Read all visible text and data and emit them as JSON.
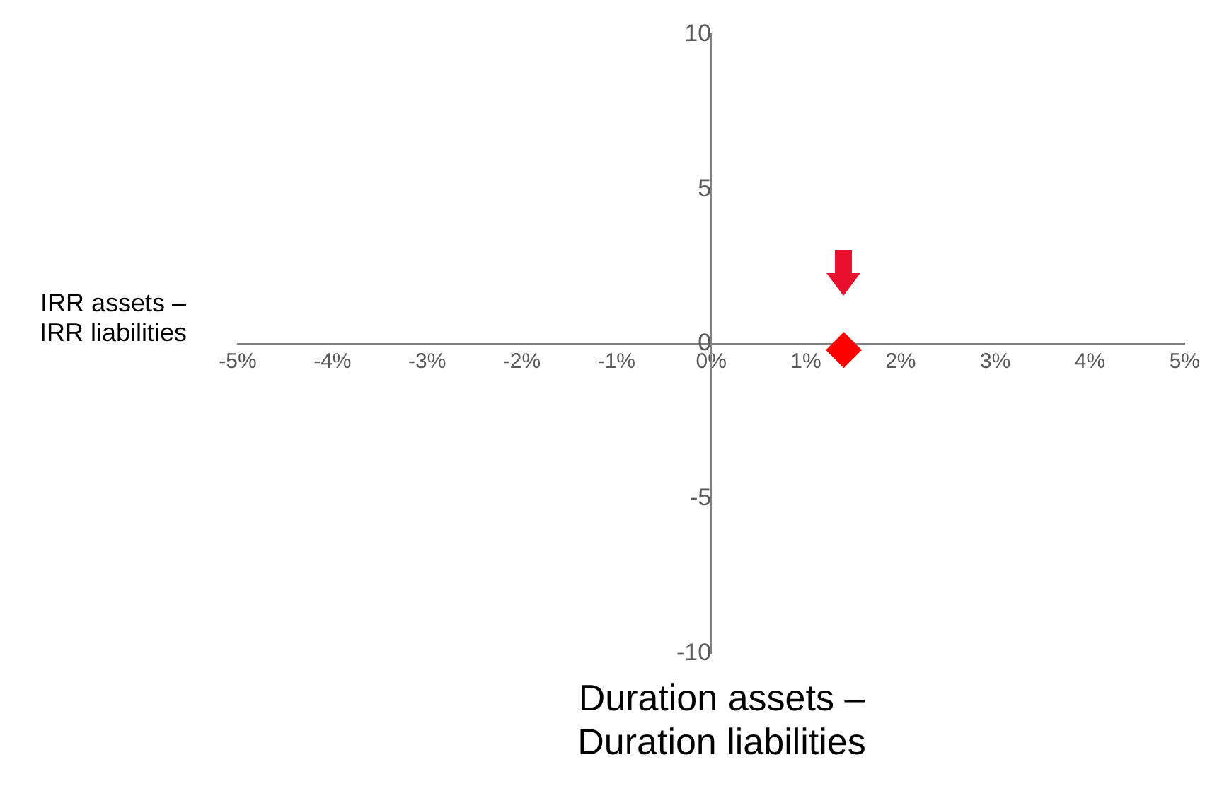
{
  "chart_data": {
    "type": "scatter",
    "xlabel": "Duration assets – Duration liabilities",
    "ylabel": "IRR assets – IRR liabilities",
    "series": [
      {
        "color": "#ff0000",
        "x": [
          1.4
        ],
        "values": [
          -0.2
        ]
      }
    ],
    "xlim": [
      -5,
      5
    ],
    "xticks": [
      {
        "value": -5,
        "label": "-5%"
      },
      {
        "value": -4,
        "label": "-4%"
      },
      {
        "value": -3,
        "label": "-3%"
      },
      {
        "value": -2,
        "label": "-2%"
      },
      {
        "value": -1,
        "label": "-1%"
      },
      {
        "value": 0,
        "label": "0%"
      },
      {
        "value": 1,
        "label": "1%"
      },
      {
        "value": 2,
        "label": "2%"
      },
      {
        "value": 3,
        "label": "3%"
      },
      {
        "value": 4,
        "label": "4%"
      },
      {
        "value": 5,
        "label": "5%"
      }
    ],
    "ylim": [
      -10,
      10
    ],
    "yticks": [
      -10,
      -5,
      0,
      5,
      10
    ],
    "grid": false,
    "legend": false,
    "marker": "diamond"
  }
}
